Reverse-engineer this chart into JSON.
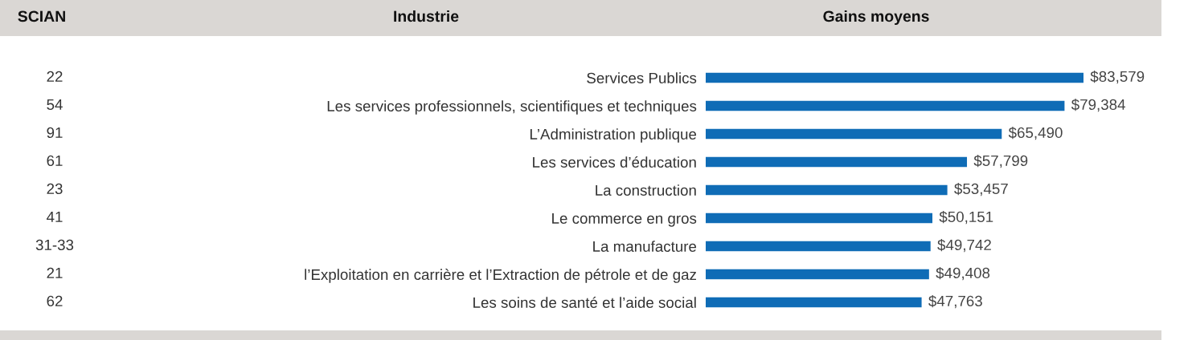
{
  "chart_data": {
    "type": "bar",
    "orientation": "horizontal",
    "categories": [
      "Services Publics",
      "Les services professionnels, scientifiques et techniques",
      "L’Administration publique",
      "Les services d’éducation",
      "La construction",
      "Le commerce en gros",
      "La manufacture",
      "l’Exploitation en carrière et l’Extraction de pétrole et de gaz",
      "Les soins de santé et l’aide social"
    ],
    "values": [
      83579,
      79384,
      65490,
      57799,
      53457,
      50151,
      49742,
      49408,
      47763
    ],
    "value_labels": [
      "$83,579",
      "$79,384",
      "$65,490",
      "$57,799",
      "$53,457",
      "$50,151",
      "$49,742",
      "$49,408",
      "$47,763"
    ],
    "color": "#0f6cb6",
    "annotations": [
      "SCIAN",
      "Industrie",
      "Gains moyens",
      "22",
      "54",
      "91",
      "61",
      "23",
      "41",
      "31-33",
      "21",
      "62"
    ],
    "grid": false,
    "legend": false
  }
}
